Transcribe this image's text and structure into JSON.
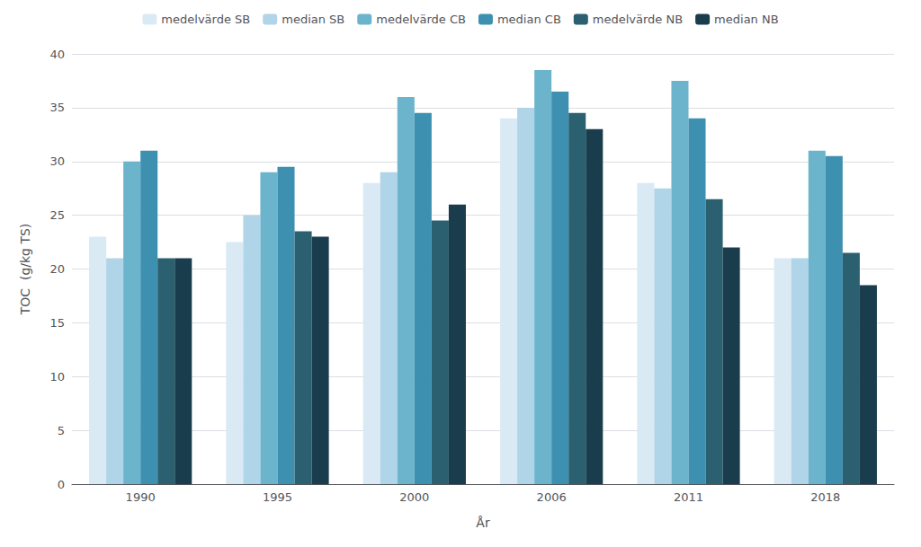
{
  "chart_data": {
    "type": "bar",
    "categories": [
      "1990",
      "1995",
      "2000",
      "2006",
      "2011",
      "2018"
    ],
    "series": [
      {
        "name": "medelvärde SB",
        "color": "#daeaf5",
        "values": [
          23.0,
          22.5,
          28.0,
          34.0,
          28.0,
          21.0
        ]
      },
      {
        "name": "median SB",
        "color": "#b0d4e8",
        "values": [
          21.0,
          25.0,
          29.0,
          35.0,
          27.5,
          21.0
        ]
      },
      {
        "name": "medelvärde CB",
        "color": "#6cb4cc",
        "values": [
          30.0,
          29.0,
          36.0,
          38.5,
          37.5,
          31.0
        ]
      },
      {
        "name": "median CB",
        "color": "#3e90b0",
        "values": [
          31.0,
          29.5,
          34.5,
          36.5,
          34.0,
          30.5
        ]
      },
      {
        "name": "medelvärde NB",
        "color": "#2a6070",
        "values": [
          21.0,
          23.5,
          24.5,
          34.5,
          26.5,
          21.5
        ]
      },
      {
        "name": "median NB",
        "color": "#1a3d4d",
        "values": [
          21.0,
          23.0,
          26.0,
          33.0,
          22.0,
          18.5
        ]
      }
    ],
    "xlabel": "År",
    "ylabel": "TOC  (g/kg TS)",
    "ylim": [
      0,
      40
    ],
    "yticks": [
      0,
      5,
      10,
      15,
      20,
      25,
      30,
      35,
      40
    ],
    "grid": true,
    "legend": "top"
  }
}
